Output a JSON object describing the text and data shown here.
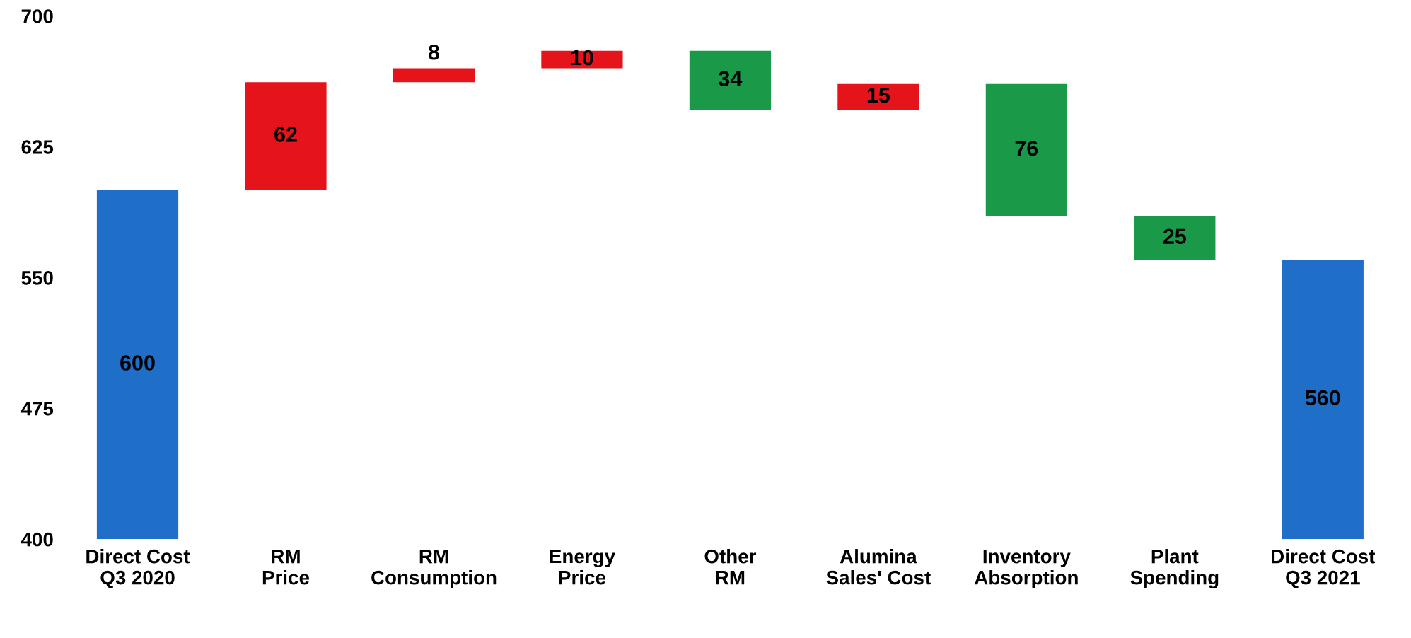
{
  "chart_data": {
    "type": "bar",
    "categories": [
      "Direct Cost\nQ3 2020",
      "RM\nPrice",
      "RM\nConsumption",
      "Energy\nPrice",
      "Other\nRM",
      "Alumina\nSales' Cost",
      "Inventory\nAbsorption",
      "Plant\nSpending",
      "Direct Cost\nQ3 2021"
    ],
    "values": [
      200,
      62,
      8,
      10,
      -34,
      15,
      -76,
      -25,
      160
    ],
    "base": [
      400,
      600,
      662,
      670,
      680,
      646,
      661,
      585,
      400
    ],
    "value_labels": [
      "600",
      "62",
      "8",
      "10",
      "34",
      "15",
      "76",
      "25",
      "560"
    ],
    "colors": [
      "#1f6fc8",
      "#e5141b",
      "#e5141b",
      "#e5141b",
      "#1a9a48",
      "#e5141b",
      "#1a9a48",
      "#1a9a48",
      "#1f6fc8"
    ],
    "ylim": [
      400,
      700
    ],
    "yticks": [
      400,
      475,
      550,
      625,
      700
    ],
    "grid": false,
    "legend": false
  }
}
